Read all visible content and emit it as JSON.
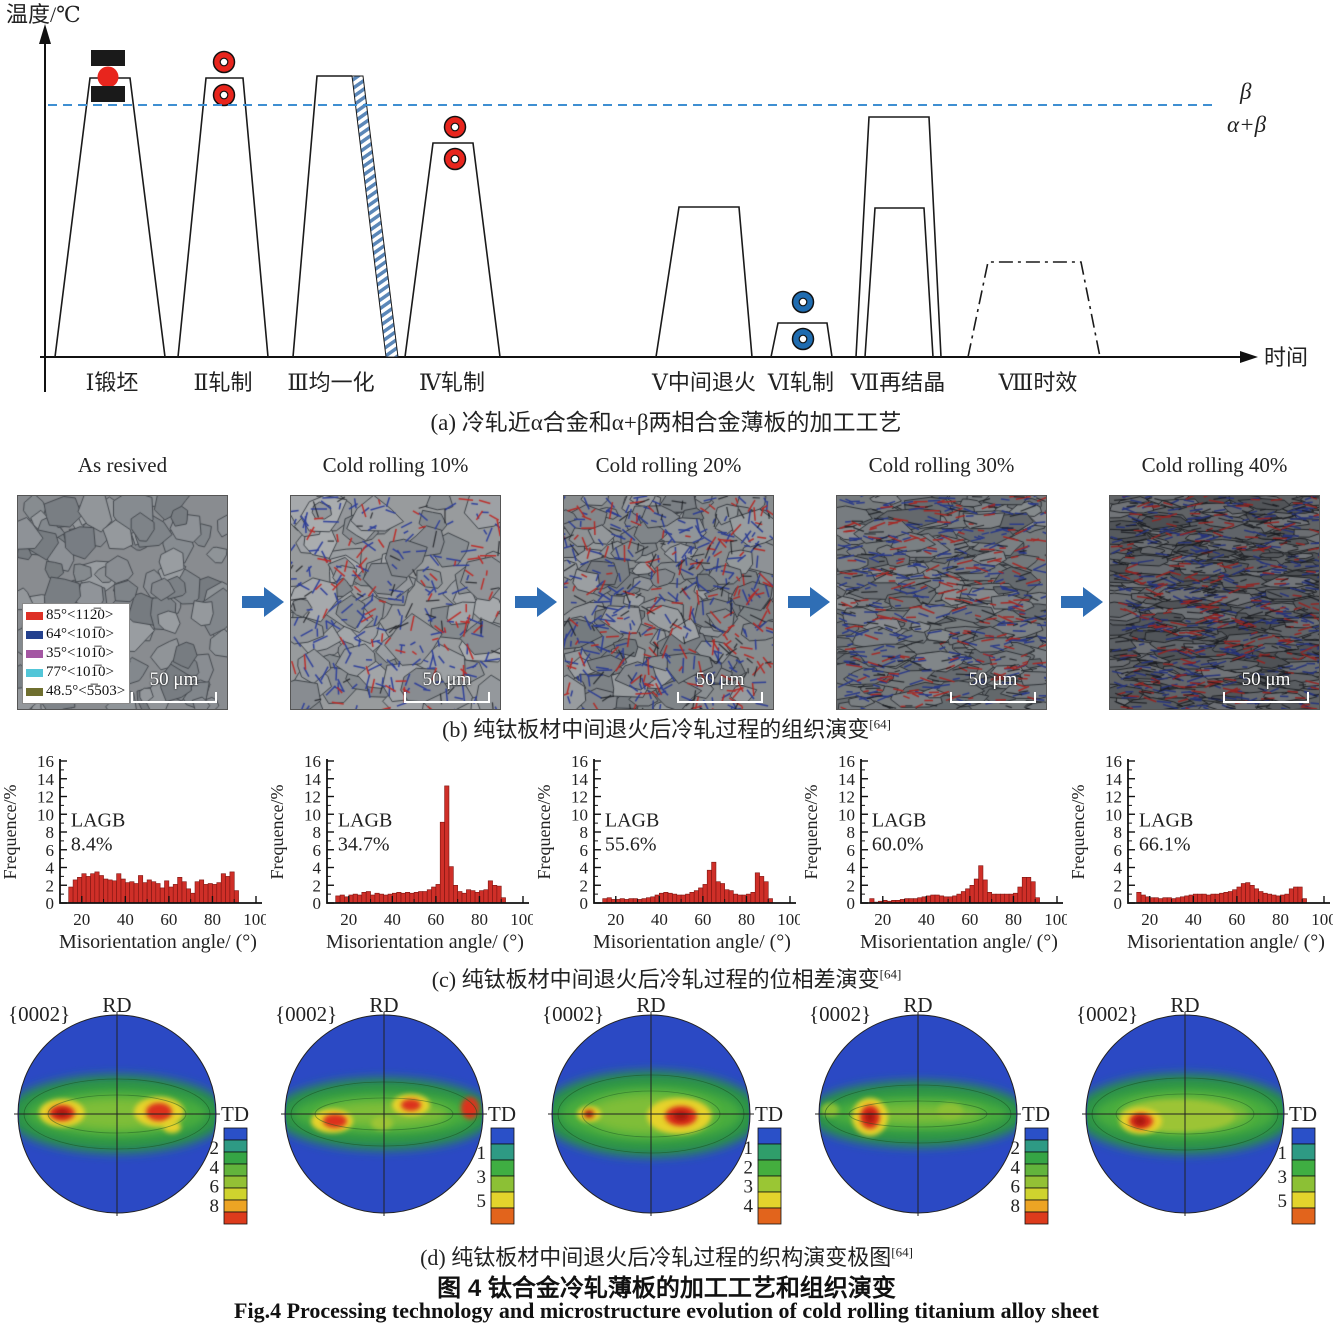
{
  "panel_a": {
    "y_axis_label": "温度/℃",
    "x_axis_label": "时间",
    "beta_label": "β",
    "alpha_beta_label": "α+β",
    "caption": "(a) 冷轧近α合金和α+β两相合金薄板的加工工艺",
    "stage_labels": [
      "Ⅰ锻坯",
      "Ⅱ轧制",
      "Ⅲ均一化",
      "Ⅳ轧制",
      "Ⅴ中间退火",
      "Ⅵ轧制",
      "Ⅶ再结晶",
      "Ⅷ时效"
    ],
    "colors": {
      "roll_red": "#e8251d",
      "roll_blue": "#1f6cb0",
      "transus_dashed_line": "#3e8fd2",
      "press_black": "#1a1a1a",
      "quench_hatch_blue": "#5b87b8"
    }
  },
  "panel_b": {
    "titles": [
      "As resived",
      "Cold rolling 10%",
      "Cold rolling 20%",
      "Cold rolling 30%",
      "Cold rolling 40%"
    ],
    "legend": [
      {
        "color": "#de3026",
        "label": "85°<112̅0>"
      },
      {
        "color": "#24418e",
        "label": "64°<101̅0>"
      },
      {
        "color": "#a457a3",
        "label": "35°<101̅0>"
      },
      {
        "color": "#52c6d8",
        "label": "77°<101̅0>"
      },
      {
        "color": "#6f6f2f",
        "label": "48.5°<5̅503>"
      }
    ],
    "scale_bar": "50 μm",
    "arrow_color": "#2f6eb5",
    "caption": "(b) 纯钛板材中间退火后冷轧过程的组织演变",
    "caption_ref": "[64]",
    "images": [
      {
        "light": 55,
        "lvar": 7,
        "grain": 14,
        "elong": 1.0,
        "edge": "#3f444a",
        "red": 0,
        "blue": 0,
        "dark": 0
      },
      {
        "light": 63,
        "lvar": 8,
        "grain": 16,
        "elong": 1.12,
        "edge": "#383d43",
        "red": 80,
        "blue": 170,
        "dark": 0.04
      },
      {
        "light": 60,
        "lvar": 9,
        "grain": 13,
        "elong": 1.3,
        "edge": "#33373d",
        "red": 150,
        "blue": 230,
        "dark": 0.09
      },
      {
        "light": 56,
        "lvar": 9,
        "grain": 11,
        "elong": 1.8,
        "edge": "#2c3035",
        "red": 190,
        "blue": 280,
        "dark": 0.16
      },
      {
        "light": 50,
        "lvar": 10,
        "grain": 8,
        "elong": 2.5,
        "edge": "#232629",
        "red": 230,
        "blue": 340,
        "dark": 0.26
      }
    ]
  },
  "panel_c": {
    "ylabel": "Frequence/%",
    "xlabel": "Misorientation angle/ (°)",
    "lagb_label": "LAGB",
    "bar_color": "#cf2f28",
    "bar_edge": "#7e1511",
    "caption": "(c) 纯钛板材中间退火后冷轧过程的位相差演变",
    "caption_ref": "[64]"
  },
  "panel_d": {
    "plane_label": "{0002}",
    "rd_label": "RD",
    "td_label": "TD",
    "caption": "(d) 纯钛板材中间退火后冷轧过程的织构演变极图",
    "caption_ref": "[64]",
    "figures": [
      {
        "band_ry": 27,
        "colorbar_labels": [
          "2",
          "4",
          "6",
          "8"
        ],
        "colorbar_colors": [
          "#2a50c8",
          "#2e9a84",
          "#35a545",
          "#62b43c",
          "#93c135",
          "#cfd32e",
          "#eda424",
          "#dd3b1c"
        ],
        "hotspots": [
          [
            -55,
            -1,
            23,
            14,
            "#e6d22a"
          ],
          [
            -55,
            -1,
            13,
            8,
            "#dc321c"
          ],
          [
            -55,
            -1,
            7,
            4,
            "#a81408"
          ],
          [
            42,
            -2,
            25,
            15,
            "#e6d22a"
          ],
          [
            42,
            -2,
            13,
            9,
            "#dc321c"
          ],
          [
            55,
            13,
            9,
            6,
            "#e6d22a"
          ]
        ]
      },
      {
        "band_ry": 24,
        "colorbar_labels": [
          "1",
          "3",
          "5"
        ],
        "colorbar_colors": [
          "#2a50c8",
          "#2e9a84",
          "#3fae42",
          "#8cc035",
          "#e3d42c",
          "#e2641c"
        ],
        "hotspots": [
          [
            -52,
            7,
            21,
            12,
            "#e6d22a"
          ],
          [
            -49,
            7,
            12,
            7,
            "#dc321c"
          ],
          [
            27,
            -9,
            19,
            11,
            "#e6d22a"
          ],
          [
            27,
            -9,
            10,
            6,
            "#dc321c"
          ],
          [
            86,
            -6,
            9,
            11,
            "#dc321c"
          ],
          [
            -2,
            9,
            11,
            7,
            "#9cc435"
          ]
        ]
      },
      {
        "band_ry": 31,
        "colorbar_labels": [
          "1",
          "2",
          "3",
          "4"
        ],
        "colorbar_colors": [
          "#2a50c8",
          "#2f9e6a",
          "#44ae3e",
          "#9ac634",
          "#e3d42c",
          "#e2641c"
        ],
        "hotspots": [
          [
            28,
            2,
            32,
            18,
            "#e6d22a"
          ],
          [
            30,
            2,
            16,
            10,
            "#dc321c"
          ],
          [
            30,
            2,
            8,
            5,
            "#a81408"
          ],
          [
            -62,
            0,
            12,
            8,
            "#e6d22a"
          ],
          [
            -62,
            0,
            5,
            4,
            "#a81408"
          ]
        ]
      },
      {
        "band_ry": 21,
        "colorbar_labels": [
          "2",
          "4",
          "6",
          "8"
        ],
        "colorbar_colors": [
          "#2a50c8",
          "#2e9a84",
          "#35a545",
          "#62b43c",
          "#93c135",
          "#cfd32e",
          "#eda424",
          "#dd3b1c"
        ],
        "hotspots": [
          [
            -48,
            3,
            18,
            19,
            "#e6d22a"
          ],
          [
            -48,
            3,
            10,
            12,
            "#dc321c"
          ],
          [
            -48,
            3,
            5,
            6,
            "#a81408"
          ],
          [
            32,
            -3,
            13,
            8,
            "#8cc035"
          ],
          [
            -88,
            -4,
            9,
            7,
            "#8cc035"
          ]
        ]
      },
      {
        "band_ry": 28,
        "colorbar_labels": [
          "1",
          "3",
          "5"
        ],
        "colorbar_colors": [
          "#2a50c8",
          "#2e9a84",
          "#3fae42",
          "#8cc035",
          "#e3d42c",
          "#e2641c"
        ],
        "hotspots": [
          [
            -8,
            2,
            58,
            16,
            "#9cc435"
          ],
          [
            -44,
            7,
            21,
            13,
            "#e6d22a"
          ],
          [
            -44,
            7,
            12,
            8,
            "#dc321c"
          ],
          [
            -45,
            7,
            6,
            5,
            "#a81408"
          ]
        ]
      }
    ]
  },
  "figure_caption_zh": "图 4  钛合金冷轧薄板的加工工艺和组织演变",
  "figure_caption_en": "Fig.4  Processing technology and microstructure evolution of cold rolling titanium alloy sheet",
  "chart_data": [
    {
      "type": "bar",
      "title": "As resived",
      "xlabel": "Misorientation angle/(°)",
      "ylabel": "Frequence/%",
      "xlim": [
        10,
        100
      ],
      "ylim": [
        0,
        16
      ],
      "x_start": 15,
      "bin_width": 2,
      "annotation": "LAGB 8.4%",
      "values": [
        1.8,
        2.6,
        2.9,
        3.3,
        3.0,
        3.3,
        3.5,
        3.1,
        2.7,
        2.6,
        2.5,
        3.3,
        2.7,
        2.3,
        2.4,
        2.2,
        3.1,
        2.3,
        2.6,
        2.4,
        2.2,
        1.7,
        2.5,
        1.8,
        2.1,
        2.9,
        2.4,
        1.6,
        1.1,
        2.4,
        2.6,
        2.1,
        2.2,
        2.1,
        2.3,
        3.3,
        3.0,
        3.5,
        1.4
      ]
    },
    {
      "type": "bar",
      "title": "Cold rolling 10%",
      "xlabel": "Misorientation angle/(°)",
      "ylabel": "Frequence/%",
      "xlim": [
        10,
        100
      ],
      "ylim": [
        0,
        16
      ],
      "x_start": 15,
      "bin_width": 2,
      "annotation": "LAGB 34.7%",
      "values": [
        0.8,
        0.9,
        0.7,
        0.9,
        1.0,
        0.9,
        1.2,
        1.3,
        0.9,
        1.1,
        1.0,
        0.9,
        1.0,
        1.1,
        1.2,
        1.1,
        1.2,
        1.1,
        1.2,
        1.3,
        1.3,
        1.5,
        1.8,
        2.1,
        9.1,
        13.2,
        4.1,
        2.0,
        1.3,
        1.1,
        1.5,
        1.4,
        1.2,
        1.4,
        1.5,
        2.5,
        2.0,
        1.9,
        0.6
      ]
    },
    {
      "type": "bar",
      "title": "Cold rolling 20%",
      "xlabel": "Misorientation angle/(°)",
      "ylabel": "Frequence/%",
      "xlim": [
        10,
        100
      ],
      "ylim": [
        0,
        16
      ],
      "x_start": 15,
      "bin_width": 2,
      "annotation": "LAGB 55.6%",
      "values": [
        0.5,
        0.6,
        0.4,
        0.4,
        0.5,
        0.4,
        0.5,
        0.5,
        0.4,
        0.5,
        0.6,
        0.7,
        0.9,
        1.1,
        1.2,
        1.1,
        1.0,
        0.9,
        0.9,
        1.0,
        1.2,
        1.4,
        1.7,
        2.1,
        3.7,
        4.6,
        2.4,
        2.2,
        1.5,
        1.4,
        1.0,
        0.9,
        0.9,
        1.0,
        1.2,
        3.4,
        3.0,
        2.4,
        0.5
      ]
    },
    {
      "type": "bar",
      "title": "Cold rolling 30%",
      "xlabel": "Misorientation angle/(°)",
      "ylabel": "Frequence/%",
      "xlim": [
        10,
        100
      ],
      "ylim": [
        0,
        16
      ],
      "x_start": 15,
      "bin_width": 2,
      "annotation": "LAGB 60.0%",
      "values": [
        0.5,
        0.1,
        0.2,
        0.3,
        0.2,
        0.3,
        0.3,
        0.4,
        0.5,
        0.5,
        0.5,
        0.6,
        0.7,
        0.8,
        0.9,
        0.9,
        0.8,
        0.7,
        0.7,
        0.8,
        1.0,
        1.3,
        1.6,
        2.0,
        2.7,
        4.2,
        2.6,
        1.2,
        1.0,
        1.0,
        1.0,
        1.0,
        1.0,
        1.1,
        1.8,
        2.9,
        2.9,
        2.4,
        0.6
      ]
    },
    {
      "type": "bar",
      "title": "Cold rolling 40%",
      "xlabel": "Misorientation angle/(°)",
      "ylabel": "Frequence/%",
      "xlim": [
        10,
        100
      ],
      "ylim": [
        0,
        16
      ],
      "x_start": 15,
      "bin_width": 2,
      "annotation": "LAGB 66.1%",
      "values": [
        1.2,
        0.9,
        0.7,
        0.6,
        0.6,
        0.5,
        0.6,
        0.6,
        0.5,
        0.6,
        0.7,
        0.8,
        0.9,
        1.0,
        1.0,
        1.0,
        0.9,
        1.0,
        1.0,
        1.1,
        1.2,
        1.3,
        1.5,
        1.8,
        2.2,
        2.3,
        2.0,
        1.6,
        1.3,
        1.1,
        1.0,
        0.9,
        0.8,
        0.9,
        1.0,
        1.6,
        1.8,
        1.8,
        0.5
      ]
    }
  ]
}
